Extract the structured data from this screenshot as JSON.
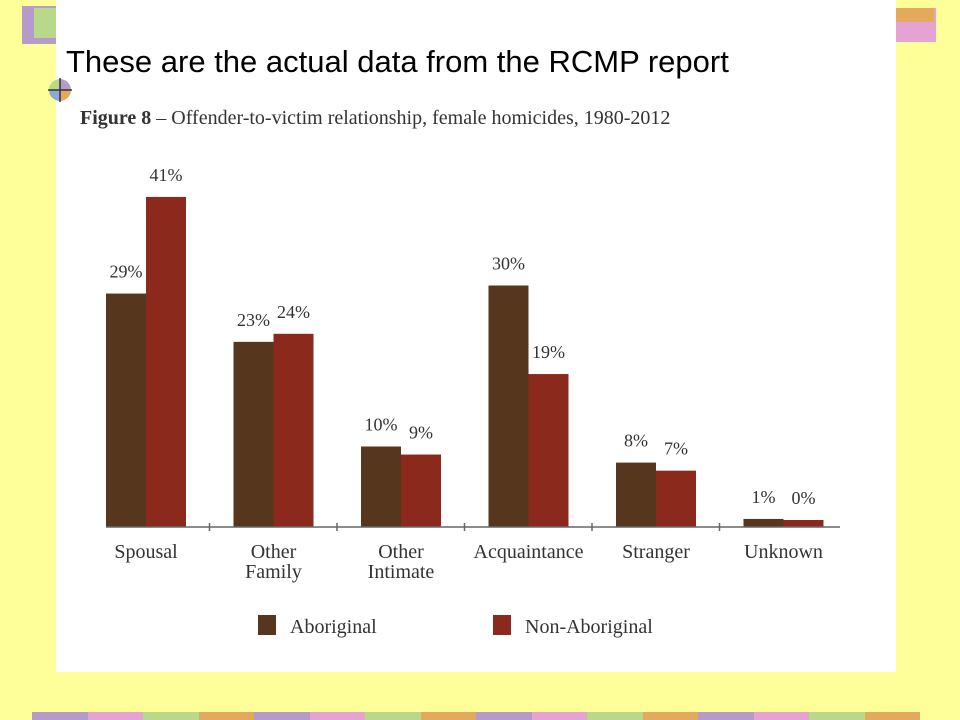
{
  "slide": {
    "title": "These are the actual data from the RCMP report",
    "colors": {
      "background": "#FFFF99",
      "panel": "#FFFFFF",
      "deco_purple": "#B59ACB",
      "deco_pink": "#E6A2D2",
      "deco_green": "#B9D98A",
      "deco_orange": "#E3A95C"
    }
  },
  "chart_data": {
    "type": "bar",
    "title_prefix": "Figure 8",
    "title": "Offender-to-victim relationship, female homicides, 1980-2012",
    "categories": [
      "Spousal",
      "Other Family",
      "Other Intimate",
      "Acquaintance",
      "Stranger",
      "Unknown"
    ],
    "category_lines": [
      [
        "Spousal"
      ],
      [
        "Other",
        "Family"
      ],
      [
        "Other",
        "Intimate"
      ],
      [
        "Acquaintance"
      ],
      [
        "Stranger"
      ],
      [
        "Unknown"
      ]
    ],
    "series": [
      {
        "name": "Aboriginal",
        "color": "#56361C",
        "values": [
          29,
          23,
          10,
          30,
          8,
          1
        ],
        "labels": [
          "29%",
          "23%",
          "10%",
          "30%",
          "8%",
          "1%"
        ]
      },
      {
        "name": "Non-Aboriginal",
        "color": "#8B2A1C",
        "values": [
          41,
          24,
          9,
          19,
          7,
          0
        ],
        "labels": [
          "41%",
          "24%",
          "9%",
          "19%",
          "7%",
          "0%"
        ]
      }
    ],
    "unit": "%",
    "legend_position": "bottom",
    "grid": false
  }
}
